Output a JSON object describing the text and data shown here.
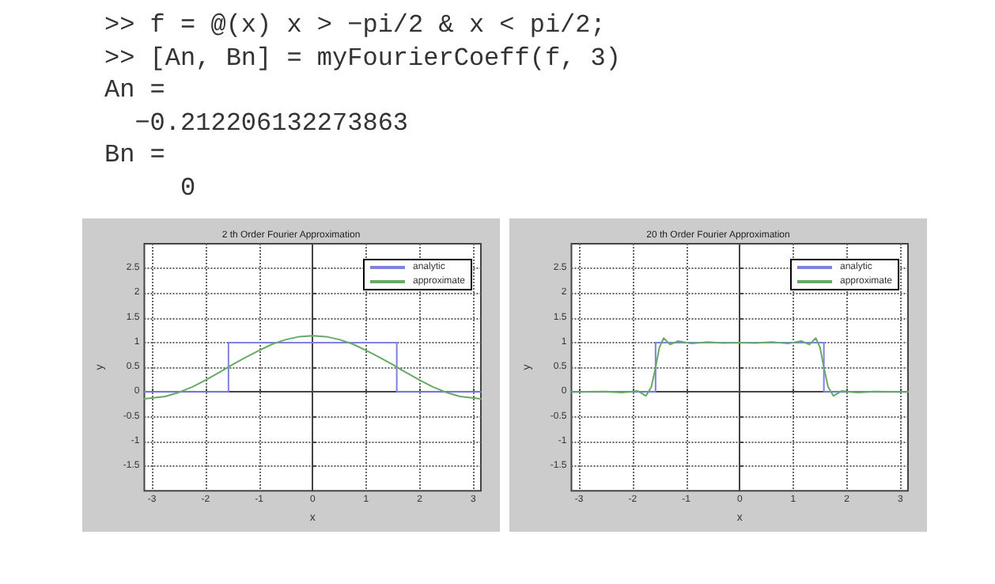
{
  "chart_data": [
    {
      "type": "other",
      "annotations": [
        ">> f = @(x) x > −pi/2 & x < pi/2;",
        ">> [An, Bn] = myFourierCoeff(f, 3)",
        "An =",
        "  −0.212206132273863",
        "Bn =",
        "     0"
      ]
    },
    {
      "type": "line",
      "title": "2 th Order Fourier Approximation",
      "xlabel": "x",
      "ylabel": "y",
      "xlim": [
        -3.1416,
        3.1416
      ],
      "ylim": [
        -2,
        3
      ],
      "xticks": [
        -3,
        -2,
        -1,
        0,
        1,
        2,
        3
      ],
      "yticks": [
        -1.5,
        -1,
        -0.5,
        0,
        0.5,
        1,
        1.5,
        2,
        2.5
      ],
      "grid": true,
      "legend": "top right",
      "marker": "none",
      "line_style": "solid",
      "series": [
        {
          "name": "analytic",
          "color": "#8080dd",
          "x": [
            -3.1416,
            -1.571,
            -1.571,
            1.571,
            1.571,
            3.1416
          ],
          "values": [
            0,
            0,
            1,
            1,
            0,
            0
          ]
        },
        {
          "name": "approximate",
          "color": "#66aa66",
          "x": [
            -3.1416,
            -2.75,
            -2.5,
            -2.25,
            -2,
            -1.75,
            -1.5,
            -1.25,
            -1,
            -0.75,
            -0.5,
            -0.25,
            0,
            0.25,
            0.5,
            0.75,
            1,
            1.25,
            1.5,
            1.75,
            2,
            2.25,
            2.5,
            2.75,
            3.1416
          ],
          "values": [
            -0.14,
            -0.09,
            -0.01,
            0.1,
            0.24,
            0.39,
            0.55,
            0.7,
            0.84,
            0.97,
            1.06,
            1.12,
            1.14,
            1.12,
            1.06,
            0.97,
            0.84,
            0.7,
            0.55,
            0.39,
            0.24,
            0.1,
            -0.01,
            -0.09,
            -0.14
          ]
        }
      ]
    },
    {
      "type": "line",
      "title": "20 th Order Fourier Approximation",
      "xlabel": "x",
      "ylabel": "y",
      "xlim": [
        -3.1416,
        3.1416
      ],
      "ylim": [
        -2,
        3
      ],
      "xticks": [
        -3,
        -2,
        -1,
        0,
        1,
        2,
        3
      ],
      "yticks": [
        -1.5,
        -1,
        -0.5,
        0,
        0.5,
        1,
        1.5,
        2,
        2.5
      ],
      "grid": true,
      "legend": "top right",
      "marker": "none",
      "line_style": "solid",
      "series": [
        {
          "name": "analytic",
          "color": "#8080dd",
          "x": [
            -3.1416,
            -1.571,
            -1.571,
            1.571,
            1.571,
            3.1416
          ],
          "values": [
            0,
            0,
            1,
            1,
            0,
            0
          ]
        },
        {
          "name": "approximate",
          "color": "#66aa66",
          "x": [
            -3.1416,
            -2.5,
            -2.2,
            -1.9,
            -1.75,
            -1.65,
            -1.57,
            -1.5,
            -1.42,
            -1.3,
            -1.15,
            -0.9,
            -0.6,
            -0.3,
            0,
            0.3,
            0.6,
            0.9,
            1.15,
            1.3,
            1.42,
            1.5,
            1.57,
            1.65,
            1.75,
            1.9,
            2.2,
            2.5,
            3.1416
          ],
          "values": [
            0,
            0.01,
            -0.01,
            0.02,
            -0.08,
            0.1,
            0.5,
            0.9,
            1.09,
            0.96,
            1.03,
            0.98,
            1.01,
            0.99,
            1,
            0.99,
            1.01,
            0.98,
            1.03,
            0.96,
            1.09,
            0.9,
            0.5,
            0.1,
            -0.08,
            0.02,
            -0.01,
            0.01,
            0
          ]
        }
      ]
    }
  ]
}
